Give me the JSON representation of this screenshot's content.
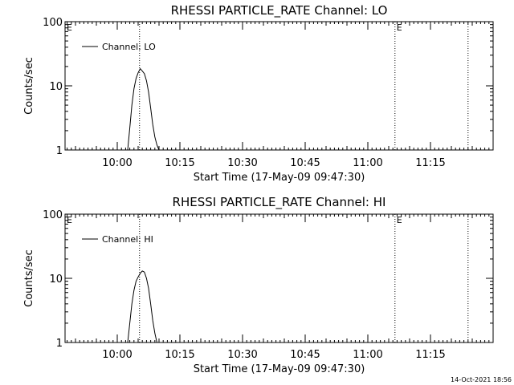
{
  "timestamp": "14-Oct-2021 18:56",
  "chart_data": [
    {
      "type": "line",
      "title": "RHESSI PARTICLE_RATE Channel: LO",
      "xlabel": "Start Time (17-May-09 09:47:30)",
      "ylabel": "Counts/sec",
      "y_scale": "log",
      "ylim": [
        1,
        100
      ],
      "y_ticks": [
        "1",
        "10",
        "100"
      ],
      "xlim": [
        "09:47:30",
        "11:30:00"
      ],
      "x_ticks": [
        "10:00",
        "10:15",
        "10:30",
        "10:45",
        "11:00",
        "11:15"
      ],
      "legend": {
        "position": "top-left",
        "label": "Channel: LO"
      },
      "event_lines": [
        "10:05:20",
        "11:06:30",
        "11:24:00"
      ],
      "event_markers": [
        {
          "label": "E",
          "x": "09:47:30"
        },
        {
          "label": "E",
          "x": "11:06:30"
        }
      ],
      "series": [
        {
          "x": [
            "10:02:30",
            "10:03:00",
            "10:03:30",
            "10:04:00",
            "10:04:30",
            "10:05:00",
            "10:05:30",
            "10:06:00",
            "10:06:30",
            "10:07:00",
            "10:07:30",
            "10:08:00",
            "10:08:30",
            "10:09:00",
            "10:09:30",
            "10:10:00"
          ],
          "values": [
            1,
            2.2,
            5,
            9,
            13,
            16,
            18.5,
            17,
            15.5,
            12,
            8,
            4.5,
            2.5,
            1.6,
            1.2,
            1
          ]
        }
      ]
    },
    {
      "type": "line",
      "title": "RHESSI PARTICLE_RATE Channel: HI",
      "xlabel": "Start Time (17-May-09 09:47:30)",
      "ylabel": "Counts/sec",
      "y_scale": "log",
      "ylim": [
        1,
        100
      ],
      "y_ticks": [
        "1",
        "10",
        "100"
      ],
      "xlim": [
        "09:47:30",
        "11:30:00"
      ],
      "x_ticks": [
        "10:00",
        "10:15",
        "10:30",
        "10:45",
        "11:00",
        "11:15"
      ],
      "legend": {
        "position": "top-left",
        "label": "Channel: HI"
      },
      "event_lines": [
        "10:05:20",
        "11:06:30",
        "11:24:00"
      ],
      "event_markers": [
        {
          "label": "E",
          "x": "09:47:30"
        },
        {
          "label": "E",
          "x": "11:06:30"
        }
      ],
      "series": [
        {
          "x": [
            "10:02:30",
            "10:03:00",
            "10:03:30",
            "10:04:00",
            "10:04:30",
            "10:05:00",
            "10:05:30",
            "10:06:00",
            "10:06:30",
            "10:07:00",
            "10:07:30",
            "10:08:00",
            "10:08:30",
            "10:09:00",
            "10:09:30"
          ],
          "values": [
            1,
            2,
            4,
            6.5,
            9,
            10.5,
            12,
            13,
            12.5,
            10,
            7,
            4,
            2.2,
            1.4,
            1
          ]
        }
      ]
    }
  ]
}
